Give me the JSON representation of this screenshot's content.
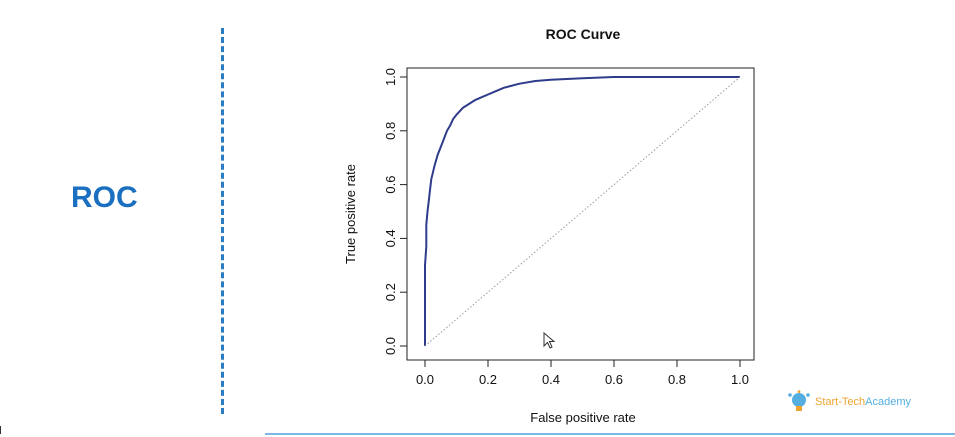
{
  "slide": {
    "label": "ROC"
  },
  "logo": {
    "name_part1": "Start-Tech",
    "name_part2": "Academy",
    "icon": "lightbulb-head-icon"
  },
  "colors": {
    "curve": "#2f3c8c",
    "diagonal": "#9a9a9a",
    "label": "#1a6fc0",
    "divider": "#2b7cc0"
  },
  "chart_data": {
    "type": "line",
    "title": "ROC Curve",
    "xlabel": "False positive rate",
    "ylabel": "True positive rate",
    "xlim": [
      0,
      1
    ],
    "ylim": [
      0,
      1
    ],
    "xticks": [
      "0.0",
      "0.2",
      "0.4",
      "0.6",
      "0.8",
      "1.0"
    ],
    "yticks": [
      "0.0",
      "0.2",
      "0.4",
      "0.6",
      "0.8",
      "1.0"
    ],
    "grid": false,
    "legend": "none",
    "series": [
      {
        "x": [
          0,
          0,
          0.004,
          0.004,
          0.008,
          0.012,
          0.016,
          0.02,
          0.03,
          0.04,
          0.05,
          0.06,
          0.07,
          0.08,
          0.09,
          0.1,
          0.12,
          0.14,
          0.16,
          0.18,
          0.2,
          0.22,
          0.25,
          0.3,
          0.35,
          0.4,
          0.5,
          0.6,
          0.7,
          0.8,
          0.9,
          1.0
        ],
        "y": [
          0,
          0.3,
          0.37,
          0.45,
          0.5,
          0.54,
          0.58,
          0.62,
          0.67,
          0.71,
          0.74,
          0.77,
          0.8,
          0.82,
          0.845,
          0.86,
          0.885,
          0.9,
          0.915,
          0.925,
          0.935,
          0.945,
          0.96,
          0.975,
          0.985,
          0.99,
          0.995,
          1.0,
          1.0,
          1.0,
          1.0,
          1.0
        ]
      },
      {
        "style": "dotted",
        "x": [
          0,
          1
        ],
        "y": [
          0,
          1
        ]
      }
    ]
  }
}
